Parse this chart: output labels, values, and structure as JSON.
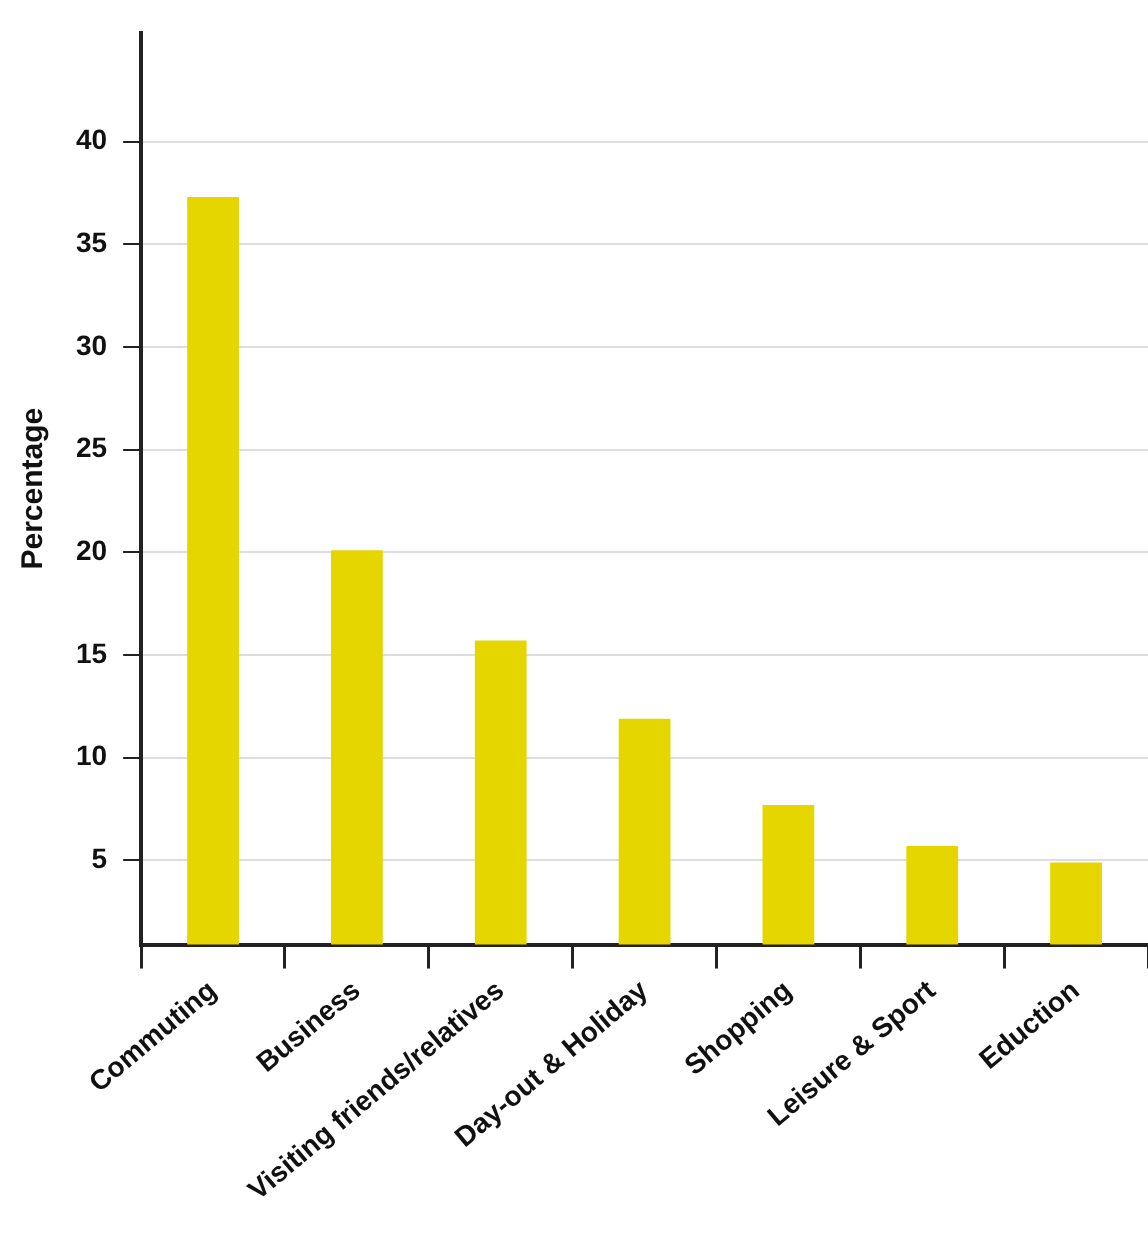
{
  "chart_data": {
    "type": "bar",
    "ylabel": "Percentage",
    "categories": [
      "Commuting",
      "Business",
      "Visiting friends/relatives",
      "Day-out & Holiday",
      "Shopping",
      "Leisure & Sport",
      "Eduction"
    ],
    "values": [
      37.3,
      20.1,
      15.7,
      11.9,
      7.7,
      5.7,
      4.9
    ],
    "color": "#e5d600",
    "ylim": [
      0.9,
      45.3
    ],
    "yticks": [
      5,
      10,
      15,
      20,
      25,
      30,
      35,
      40
    ],
    "grid": "y",
    "legend": false
  }
}
